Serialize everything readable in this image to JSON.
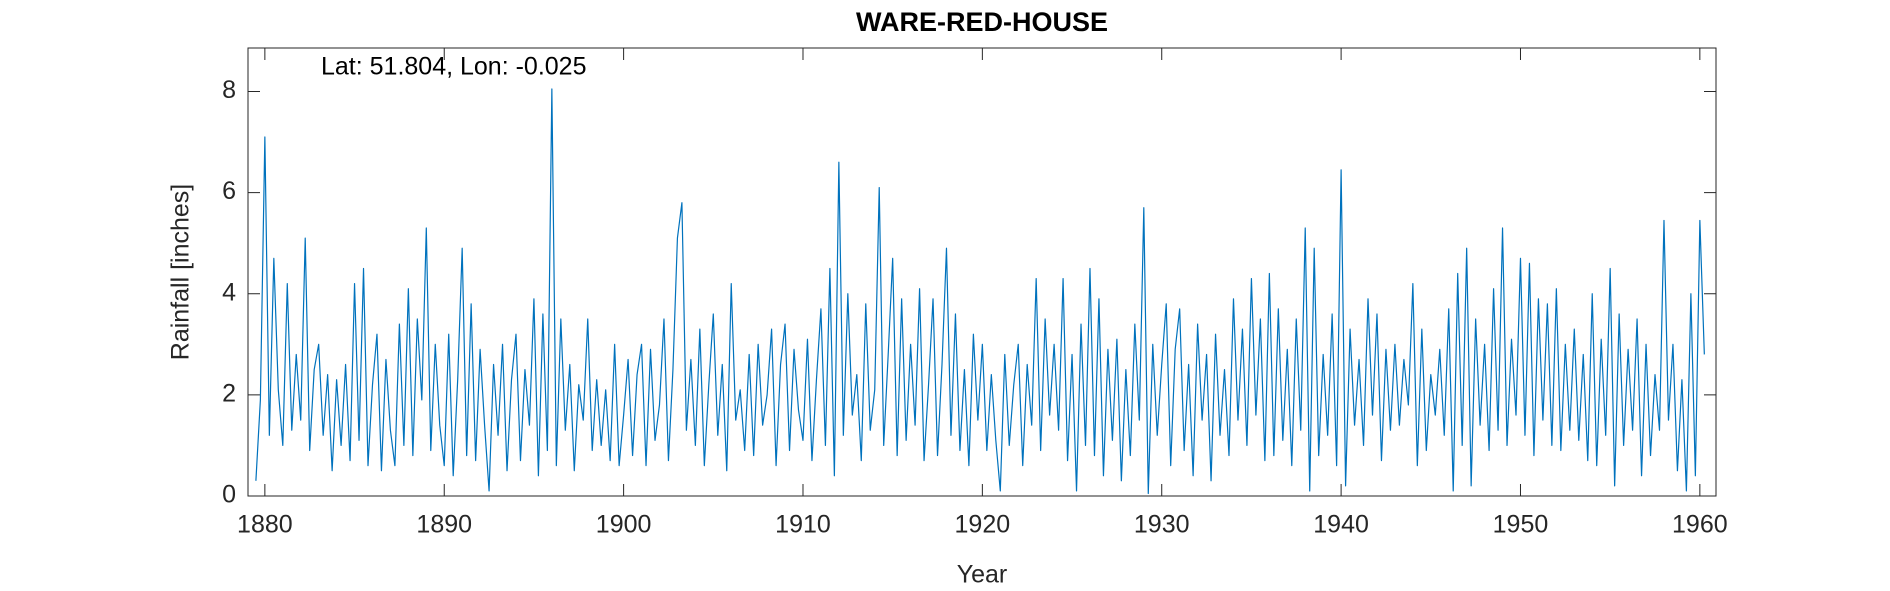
{
  "chart_data": {
    "type": "line",
    "title": "WARE-RED-HOUSE",
    "annotation": "Lat: 51.804, Lon: -0.025",
    "x_label": "Year",
    "y_label": "Rainfall [inches]",
    "color": "#0072bd",
    "xlim": [
      1879.06,
      1960.9
    ],
    "ylim": [
      0,
      8.86
    ],
    "xticks": [
      1880,
      1890,
      1900,
      1910,
      1920,
      1930,
      1940,
      1950,
      1960
    ],
    "yticks": [
      0,
      2,
      4,
      6,
      8
    ],
    "x": [
      1879.5,
      1879.75,
      1880,
      1880.25,
      1880.5,
      1880.75,
      1881,
      1881.25,
      1881.5,
      1881.75,
      1882,
      1882.25,
      1882.5,
      1882.75,
      1883,
      1883.25,
      1883.5,
      1883.75,
      1884,
      1884.25,
      1884.5,
      1884.75,
      1885,
      1885.25,
      1885.5,
      1885.75,
      1886,
      1886.25,
      1886.5,
      1886.75,
      1887,
      1887.25,
      1887.5,
      1887.75,
      1888,
      1888.25,
      1888.5,
      1888.75,
      1889,
      1889.25,
      1889.5,
      1889.75,
      1890,
      1890.25,
      1890.5,
      1890.75,
      1891,
      1891.25,
      1891.5,
      1891.75,
      1892,
      1892.25,
      1892.5,
      1892.75,
      1893,
      1893.25,
      1893.5,
      1893.75,
      1894,
      1894.25,
      1894.5,
      1894.75,
      1895,
      1895.25,
      1895.5,
      1895.75,
      1896,
      1896.25,
      1896.5,
      1896.75,
      1897,
      1897.25,
      1897.5,
      1897.75,
      1898,
      1898.25,
      1898.5,
      1898.75,
      1899,
      1899.25,
      1899.5,
      1899.75,
      1900,
      1900.25,
      1900.5,
      1900.75,
      1901,
      1901.25,
      1901.5,
      1901.75,
      1902,
      1902.25,
      1902.5,
      1902.75,
      1903,
      1903.25,
      1903.5,
      1903.75,
      1904,
      1904.25,
      1904.5,
      1904.75,
      1905,
      1905.25,
      1905.5,
      1905.75,
      1906,
      1906.25,
      1906.5,
      1906.75,
      1907,
      1907.25,
      1907.5,
      1907.75,
      1908,
      1908.25,
      1908.5,
      1908.75,
      1909,
      1909.25,
      1909.5,
      1909.75,
      1910,
      1910.25,
      1910.5,
      1910.75,
      1911,
      1911.25,
      1911.5,
      1911.75,
      1912,
      1912.25,
      1912.5,
      1912.75,
      1913,
      1913.25,
      1913.5,
      1913.75,
      1914,
      1914.25,
      1914.5,
      1914.75,
      1915,
      1915.25,
      1915.5,
      1915.75,
      1916,
      1916.25,
      1916.5,
      1916.75,
      1917,
      1917.25,
      1917.5,
      1917.75,
      1918,
      1918.25,
      1918.5,
      1918.75,
      1919,
      1919.25,
      1919.5,
      1919.75,
      1920,
      1920.25,
      1920.5,
      1920.75,
      1921,
      1921.25,
      1921.5,
      1921.75,
      1922,
      1922.25,
      1922.5,
      1922.75,
      1923,
      1923.25,
      1923.5,
      1923.75,
      1924,
      1924.25,
      1924.5,
      1924.75,
      1925,
      1925.25,
      1925.5,
      1925.75,
      1926,
      1926.25,
      1926.5,
      1926.75,
      1927,
      1927.25,
      1927.5,
      1927.75,
      1928,
      1928.25,
      1928.5,
      1928.75,
      1929,
      1929.25,
      1929.5,
      1929.75,
      1930,
      1930.25,
      1930.5,
      1930.75,
      1931,
      1931.25,
      1931.5,
      1931.75,
      1932,
      1932.25,
      1932.5,
      1932.75,
      1933,
      1933.25,
      1933.5,
      1933.75,
      1934,
      1934.25,
      1934.5,
      1934.75,
      1935,
      1935.25,
      1935.5,
      1935.75,
      1936,
      1936.25,
      1936.5,
      1936.75,
      1937,
      1937.25,
      1937.5,
      1937.75,
      1938,
      1938.25,
      1938.5,
      1938.75,
      1939,
      1939.25,
      1939.5,
      1939.75,
      1940,
      1940.25,
      1940.5,
      1940.75,
      1941,
      1941.25,
      1941.5,
      1941.75,
      1942,
      1942.25,
      1942.5,
      1942.75,
      1943,
      1943.25,
      1943.5,
      1943.75,
      1944,
      1944.25,
      1944.5,
      1944.75,
      1945,
      1945.25,
      1945.5,
      1945.75,
      1946,
      1946.25,
      1946.5,
      1946.75,
      1947,
      1947.25,
      1947.5,
      1947.75,
      1948,
      1948.25,
      1948.5,
      1948.75,
      1949,
      1949.25,
      1949.5,
      1949.75,
      1950,
      1950.25,
      1950.5,
      1950.75,
      1951,
      1951.25,
      1951.5,
      1951.75,
      1952,
      1952.25,
      1952.5,
      1952.75,
      1953,
      1953.25,
      1953.5,
      1953.75,
      1954,
      1954.25,
      1954.5,
      1954.75,
      1955,
      1955.25,
      1955.5,
      1955.75,
      1956,
      1956.25,
      1956.5,
      1956.75,
      1957,
      1957.25,
      1957.5,
      1957.75,
      1958,
      1958.25,
      1958.5,
      1958.75,
      1959,
      1959.25,
      1959.5,
      1959.75,
      1960,
      1960.25
    ],
    "values": [
      0.3,
      1.9,
      7.1,
      1.2,
      4.7,
      2.1,
      1.0,
      4.2,
      1.3,
      2.8,
      1.5,
      5.1,
      0.9,
      2.5,
      3.0,
      1.2,
      2.4,
      0.5,
      2.3,
      1.0,
      2.6,
      0.7,
      4.2,
      1.1,
      4.5,
      0.6,
      2.2,
      3.2,
      0.5,
      2.7,
      1.3,
      0.6,
      3.4,
      1.0,
      4.1,
      0.8,
      3.5,
      1.9,
      5.3,
      0.9,
      3.0,
      1.4,
      0.6,
      3.2,
      0.4,
      2.3,
      4.9,
      0.8,
      3.8,
      0.7,
      2.9,
      1.4,
      0.1,
      2.6,
      1.2,
      3.0,
      0.5,
      2.3,
      3.2,
      0.7,
      2.5,
      1.4,
      3.9,
      0.4,
      3.6,
      0.9,
      8.05,
      0.6,
      3.5,
      1.3,
      2.6,
      0.5,
      2.2,
      1.5,
      3.5,
      0.9,
      2.3,
      1.0,
      2.1,
      0.7,
      3.0,
      0.6,
      1.6,
      2.7,
      0.8,
      2.4,
      3.0,
      0.6,
      2.9,
      1.1,
      1.8,
      3.5,
      0.7,
      2.5,
      5.1,
      5.8,
      1.3,
      2.7,
      1.0,
      3.3,
      0.6,
      2.2,
      3.6,
      1.2,
      2.6,
      0.5,
      4.2,
      1.5,
      2.1,
      0.9,
      2.8,
      0.8,
      3.0,
      1.4,
      2.0,
      3.3,
      0.6,
      2.6,
      3.4,
      0.9,
      2.9,
      1.7,
      1.1,
      3.1,
      0.7,
      2.3,
      3.7,
      1.0,
      4.5,
      0.4,
      6.6,
      1.2,
      4.0,
      1.6,
      2.4,
      0.7,
      3.8,
      1.3,
      2.1,
      6.1,
      1.0,
      2.8,
      4.7,
      0.8,
      3.9,
      1.1,
      3.0,
      1.4,
      4.1,
      0.7,
      2.2,
      3.9,
      0.8,
      2.6,
      4.9,
      1.2,
      3.6,
      0.9,
      2.5,
      0.6,
      3.2,
      1.5,
      3.0,
      0.9,
      2.4,
      1.1,
      0.1,
      2.8,
      1.0,
      2.2,
      3.0,
      0.6,
      2.6,
      1.4,
      4.3,
      0.9,
      3.5,
      1.6,
      3.0,
      1.3,
      4.3,
      0.7,
      2.8,
      0.1,
      3.4,
      1.0,
      4.5,
      0.8,
      3.9,
      0.4,
      2.9,
      1.1,
      3.1,
      0.3,
      2.5,
      0.8,
      3.4,
      1.5,
      5.7,
      0.05,
      3.0,
      1.2,
      2.6,
      3.8,
      0.6,
      2.9,
      3.7,
      0.9,
      2.6,
      0.4,
      3.4,
      1.5,
      2.8,
      0.3,
      3.2,
      1.2,
      2.5,
      0.8,
      3.9,
      1.5,
      3.3,
      1.0,
      4.3,
      1.6,
      3.5,
      0.7,
      4.4,
      0.8,
      3.7,
      1.1,
      2.9,
      0.6,
      3.5,
      1.3,
      5.3,
      0.1,
      4.9,
      0.8,
      2.8,
      1.2,
      3.6,
      0.6,
      6.45,
      0.2,
      3.3,
      1.4,
      2.7,
      1.0,
      3.9,
      1.6,
      3.6,
      0.7,
      2.9,
      1.3,
      3.0,
      1.4,
      2.7,
      1.8,
      4.2,
      0.6,
      3.3,
      0.9,
      2.4,
      1.6,
      2.9,
      1.2,
      3.7,
      0.1,
      4.4,
      1.0,
      4.9,
      0.2,
      3.5,
      1.4,
      3.0,
      0.9,
      4.1,
      1.3,
      5.3,
      1.0,
      3.1,
      1.6,
      4.7,
      1.2,
      4.6,
      0.8,
      3.9,
      1.5,
      3.8,
      1.0,
      4.1,
      0.9,
      3.0,
      1.3,
      3.3,
      1.1,
      2.8,
      0.7,
      4.0,
      0.6,
      3.1,
      1.2,
      4.5,
      0.2,
      3.6,
      1.0,
      2.9,
      1.3,
      3.5,
      0.4,
      3.0,
      0.8,
      2.4,
      1.3,
      5.45,
      1.5,
      3.0,
      0.5,
      2.3,
      0.1,
      4.0,
      0.4,
      5.45,
      2.8
    ]
  }
}
